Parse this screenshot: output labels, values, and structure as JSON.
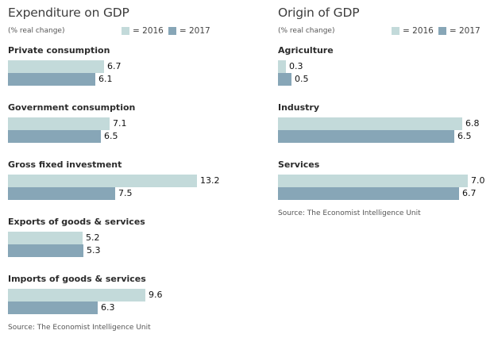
{
  "colors": {
    "y2016": "#c3dada",
    "y2017": "#87a6b7"
  },
  "chart_data": [
    {
      "type": "bar",
      "orientation": "horizontal",
      "title": "Expenditure on GDP",
      "subtitle": "(% real change)",
      "legend": [
        {
          "label": "= 2016"
        },
        {
          "label": "= 2017"
        }
      ],
      "legend_placement": "top-right",
      "categories": [
        "Private consumption",
        "Government consumption",
        "Gross fixed investment",
        "Exports of goods & services",
        "Imports of goods & services"
      ],
      "series": [
        {
          "name": "2016",
          "values": [
            6.7,
            7.1,
            13.2,
            5.2,
            9.6
          ],
          "labels": [
            "6.7",
            "7.1",
            "13.2",
            "5.2",
            "9.6"
          ]
        },
        {
          "name": "2017",
          "values": [
            6.1,
            6.5,
            7.5,
            5.3,
            6.3
          ],
          "labels": [
            "6.1",
            "6.5",
            "7.5",
            "5.3",
            "6.3"
          ]
        }
      ],
      "xlim": [
        0,
        13.2
      ],
      "grid": false,
      "source": "Source: The Economist Intelligence Unit"
    },
    {
      "type": "bar",
      "orientation": "horizontal",
      "title": "Origin of GDP",
      "subtitle": "(% real change)",
      "legend": [
        {
          "label": "= 2016"
        },
        {
          "label": "= 2017"
        }
      ],
      "legend_placement": "top-right",
      "categories": [
        "Agriculture",
        "Industry",
        "Services"
      ],
      "series": [
        {
          "name": "2016",
          "values": [
            0.3,
            6.8,
            7.0
          ],
          "labels": [
            "0.3",
            "6.8",
            "7.0"
          ]
        },
        {
          "name": "2017",
          "values": [
            0.5,
            6.5,
            6.7
          ],
          "labels": [
            "0.5",
            "6.5",
            "6.7"
          ]
        }
      ],
      "xlim": [
        0,
        7.0
      ],
      "grid": false,
      "source": "Source: The Economist Intelligence Unit"
    }
  ]
}
